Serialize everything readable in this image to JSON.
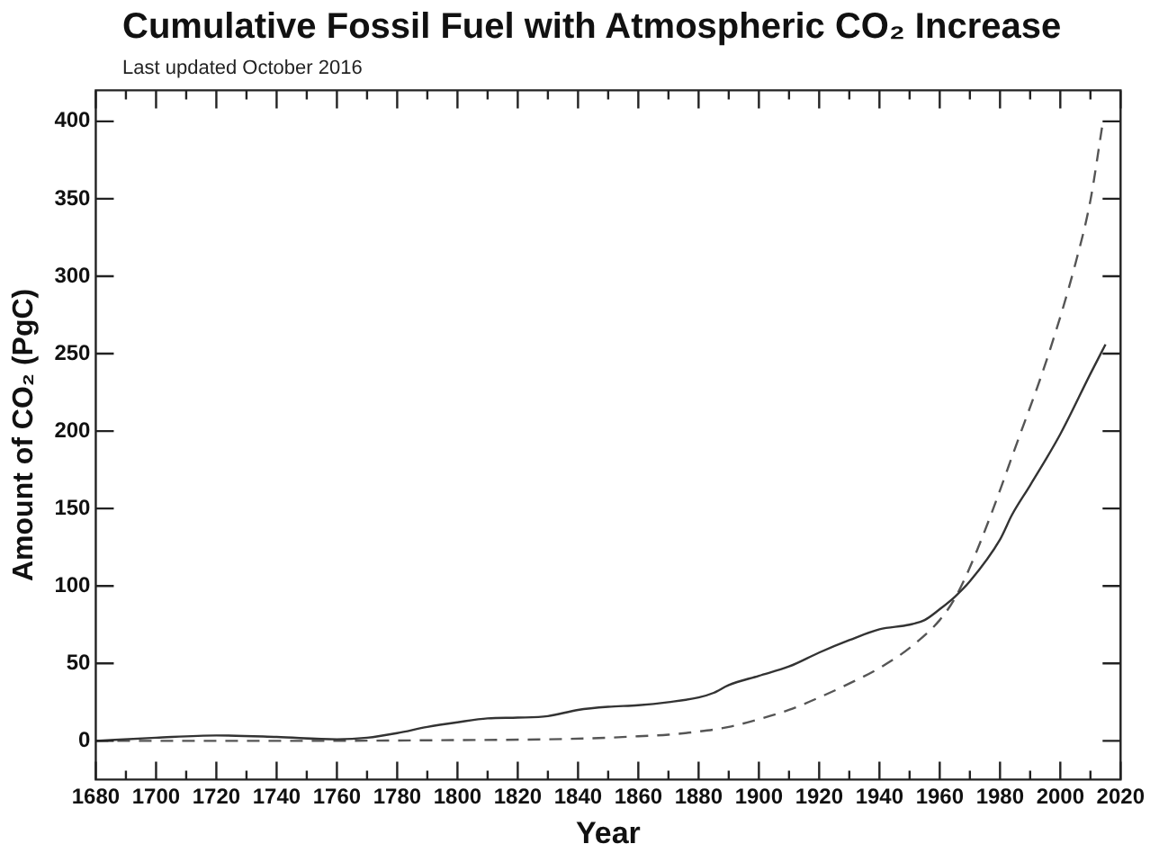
{
  "chart_data": {
    "type": "line",
    "title": "Cumulative Fossil Fuel with Atmospheric CO₂ Increase",
    "subtitle": "Last updated October 2016",
    "xlabel": "Year",
    "ylabel": "Amount of CO₂ (PgC)",
    "xlim": [
      1680,
      2020
    ],
    "xticks": [
      1680,
      1700,
      1720,
      1740,
      1760,
      1780,
      1800,
      1820,
      1840,
      1860,
      1880,
      1900,
      1920,
      1940,
      1960,
      1980,
      2000,
      2020
    ],
    "ylim": [
      -25,
      420
    ],
    "yticks": [
      0,
      50,
      100,
      150,
      200,
      250,
      300,
      350,
      400
    ],
    "grid": false,
    "legend": false,
    "marker": "none",
    "series": [
      {
        "color": "#333333",
        "line_style": "solid",
        "x": [
          1680,
          1700,
          1720,
          1740,
          1760,
          1770,
          1780,
          1790,
          1800,
          1810,
          1820,
          1830,
          1840,
          1850,
          1860,
          1870,
          1880,
          1885,
          1890,
          1900,
          1910,
          1920,
          1930,
          1940,
          1950,
          1955,
          1960,
          1965,
          1970,
          1980,
          1984,
          1990,
          2000,
          2010,
          2015
        ],
        "values": [
          0,
          2,
          3.5,
          2.5,
          1,
          2,
          5,
          9,
          12,
          14.5,
          15,
          16,
          20,
          22,
          23,
          25,
          28,
          31,
          36,
          42,
          48,
          57,
          65,
          72,
          75,
          78,
          85,
          93,
          103,
          130,
          146,
          165,
          198,
          237,
          256
        ]
      },
      {
        "color": "#555555",
        "line_style": "dashed",
        "x": [
          1680,
          1750,
          1800,
          1830,
          1850,
          1860,
          1870,
          1880,
          1890,
          1900,
          1910,
          1920,
          1930,
          1940,
          1950,
          1960,
          1965,
          1970,
          1977,
          1985,
          1996,
          2005,
          2010,
          2014
        ],
        "values": [
          0,
          0,
          0.5,
          1,
          2,
          3,
          4,
          6,
          9,
          14,
          20,
          28,
          37,
          47,
          60,
          78,
          92,
          112,
          146,
          189,
          249,
          308,
          349,
          398
        ]
      }
    ]
  }
}
